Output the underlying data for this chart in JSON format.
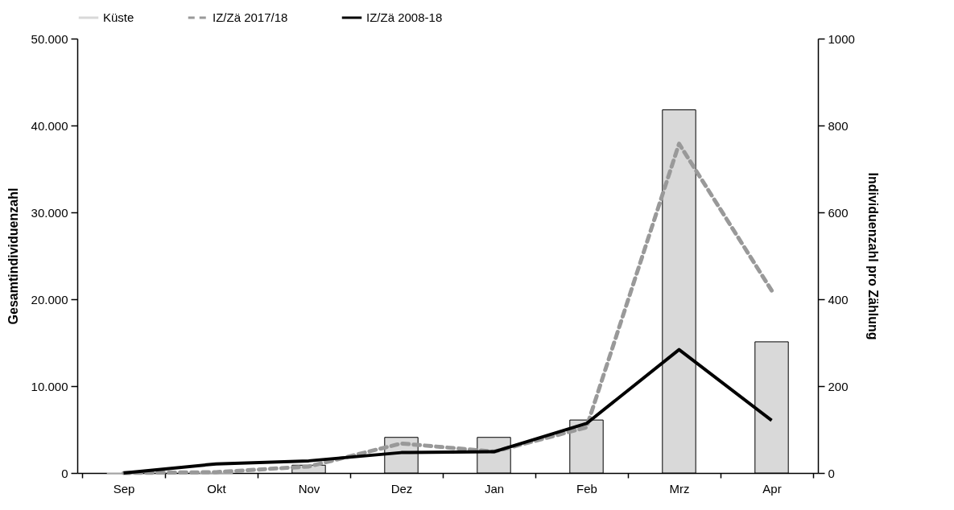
{
  "chart_data": {
    "type": "bar",
    "ylabel": "Gesamtindividuenzahl",
    "y2label": "Individuenzahl pro Zählung",
    "categories": [
      "Sep",
      "Okt",
      "Nov",
      "Dez",
      "Jan",
      "Feb",
      "Mrz",
      "Apr"
    ],
    "series": [
      {
        "name": "Küste",
        "type": "bar",
        "color": "#d9d9d9",
        "values": [
          0,
          0,
          900,
          4100,
          4100,
          6100,
          41800,
          15100
        ]
      },
      {
        "name": "IZ/Zä 2017/18",
        "type": "line",
        "axis": "y2",
        "color": "#999999",
        "line_style": "dashed",
        "values": [
          0,
          2,
          15,
          68,
          49,
          105,
          758,
          420
        ]
      },
      {
        "name": "IZ/Zä 2008-18",
        "type": "line",
        "axis": "y2",
        "color": "#000000",
        "line_style": "solid",
        "values": [
          0,
          21,
          28,
          47,
          49,
          114,
          284,
          121
        ]
      }
    ],
    "ylim": [
      0,
      50000
    ],
    "yticks": [
      {
        "value": 0,
        "label": "0"
      },
      {
        "value": 10000,
        "label": "10.000"
      },
      {
        "value": 20000,
        "label": "20.000"
      },
      {
        "value": 30000,
        "label": "30.000"
      },
      {
        "value": 40000,
        "label": "40.000"
      },
      {
        "value": 50000,
        "label": "50.000"
      }
    ],
    "y2lim": [
      0,
      1000
    ],
    "y2ticks": [
      0,
      200,
      400,
      600,
      800,
      1000
    ],
    "grid": false,
    "legend": "top"
  }
}
